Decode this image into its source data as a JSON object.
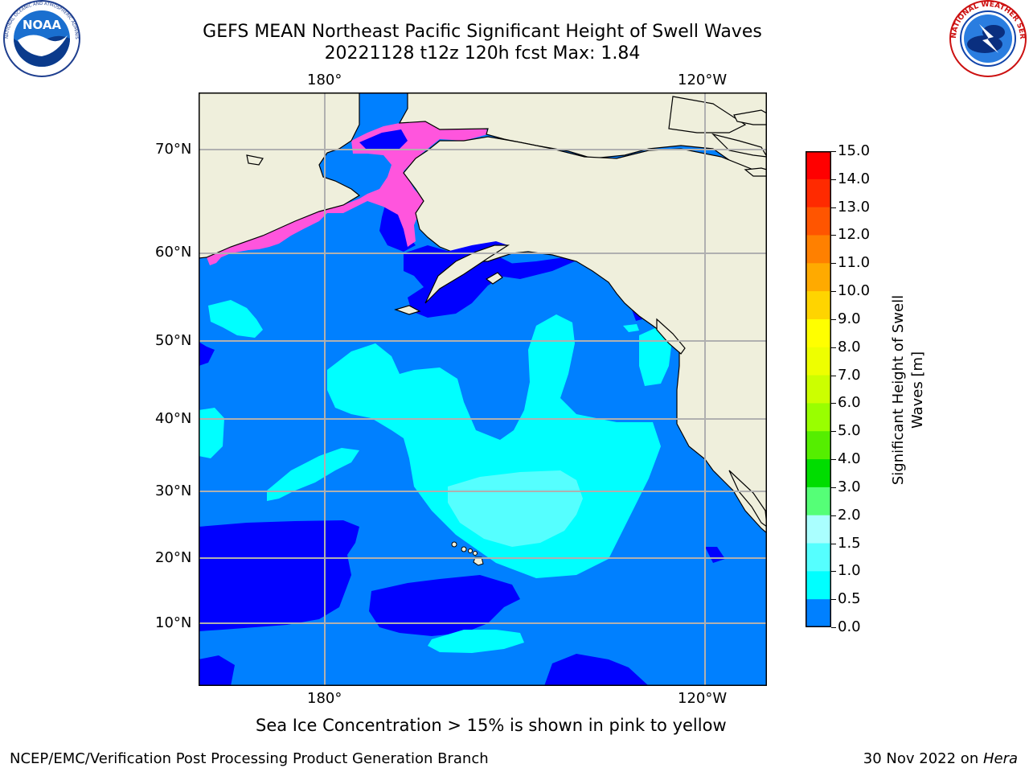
{
  "title_line1": "GEFS MEAN Northeast Pacific Significant Height of Swell Waves",
  "title_line2": "20221128 t12z 120h fcst   Max: 1.84",
  "logo_left_text": "NOAA",
  "logo_left_ring_text": "NATIONAL OCEANIC AND ATMOSPHERIC ADMINISTRATION · U.S. DEPARTMENT OF COMMERCE",
  "logo_right_ring_text": "NATIONAL WEATHER SERVICE",
  "lon_ticks": [
    "180°",
    "120°W"
  ],
  "lat_ticks": [
    "70°N",
    "60°N",
    "50°N",
    "40°N",
    "30°N",
    "20°N",
    "10°N"
  ],
  "colorbar": {
    "label_line1": "Significant Height of Swell",
    "label_line2": "Waves [m]",
    "ticks": [
      "15.0",
      "14.0",
      "13.0",
      "12.0",
      "11.0",
      "10.0",
      "9.0",
      "8.0",
      "7.0",
      "6.0",
      "5.0",
      "4.0",
      "3.0",
      "2.0",
      "1.5",
      "1.0",
      "0.5",
      "0.0"
    ],
    "colors": [
      "#ff0000",
      "#ff2a00",
      "#ff5500",
      "#ff8000",
      "#ffaa00",
      "#ffd400",
      "#ffff00",
      "#eeff00",
      "#ccff00",
      "#99ff00",
      "#55ee00",
      "#00dd00",
      "#55ff77",
      "#aaffff",
      "#55ffff",
      "#00ffff",
      "#0080ff",
      "#0000ff"
    ]
  },
  "colors": {
    "land": "#efefdc",
    "ocean_1_0": "#0080ff",
    "ocean_0_5": "#0000ff",
    "swell_1_5": "#00ffff",
    "swell_2_0": "#55ffff",
    "ice_pink": "#ff55dd",
    "ice_yellow": "#ffd400",
    "grid": "#b0b0b0"
  },
  "note": "Sea Ice Concentration > 15% is shown in pink to yellow",
  "footer_left": "NCEP/EMC/Verification Post Processing Product Generation Branch",
  "footer_date": "30 Nov 2022 on ",
  "footer_host": "Hera"
}
